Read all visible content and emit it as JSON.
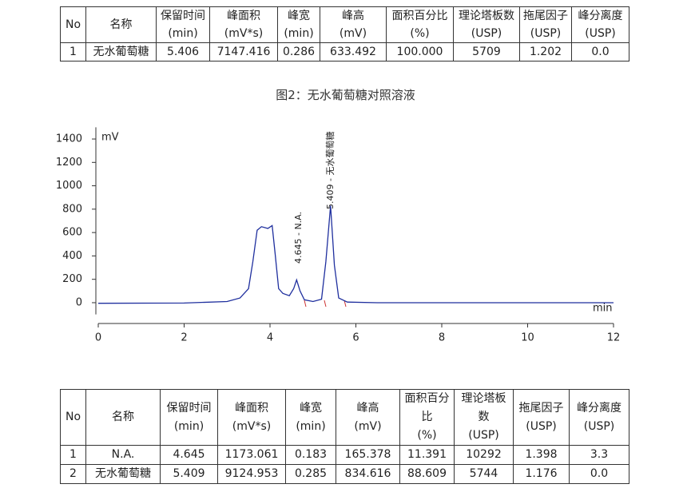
{
  "table1": {
    "headers": [
      [
        "No"
      ],
      [
        "名称"
      ],
      [
        "保留时间",
        "(min)"
      ],
      [
        "峰面积",
        "(mV*s)"
      ],
      [
        "峰宽",
        "(min)"
      ],
      [
        "峰高",
        "(mV)"
      ],
      [
        "面积百分比",
        "(%)"
      ],
      [
        "理论塔板数",
        "(USP)"
      ],
      [
        "拖尾因子",
        "(USP)"
      ],
      [
        "峰分离度",
        "(USP)"
      ]
    ],
    "rows": [
      [
        "1",
        "无水葡萄糖",
        "5.406",
        "7147.416",
        "0.286",
        "633.492",
        "100.000",
        "5709",
        "1.202",
        "0.0"
      ]
    ]
  },
  "caption": "图2：无水葡萄糖对照溶液",
  "chart_data": {
    "type": "line",
    "y_label": "mV",
    "x_label": "min",
    "x": [
      0,
      2,
      3,
      3.3,
      3.5,
      3.6,
      3.7,
      3.8,
      3.95,
      4.05,
      4.12,
      4.2,
      4.3,
      4.45,
      4.55,
      4.62,
      4.7,
      4.8,
      5.0,
      5.2,
      5.3,
      5.41,
      5.5,
      5.6,
      5.8,
      6.5,
      12
    ],
    "values": [
      -5,
      -3,
      10,
      40,
      120,
      350,
      620,
      650,
      635,
      660,
      420,
      120,
      80,
      60,
      120,
      195,
      100,
      25,
      10,
      30,
      350,
      830,
      320,
      40,
      5,
      0,
      0
    ],
    "color": "#1f2f9e",
    "xlim": [
      0,
      12
    ],
    "ylim": [
      -100,
      1500
    ],
    "xticks": [
      0,
      2,
      4,
      6,
      8,
      10,
      12
    ],
    "yticks": [
      0,
      200,
      400,
      600,
      800,
      1000,
      1200,
      1400
    ],
    "annotations": [
      "4.645 - N.A.",
      "5.409 - 无水葡萄糖"
    ]
  },
  "table2": {
    "headers": [
      [
        "No"
      ],
      [
        "名称"
      ],
      [
        "保留时间",
        "(min)"
      ],
      [
        "峰面积",
        "(mV*s)"
      ],
      [
        "峰宽",
        "(min)"
      ],
      [
        "峰高",
        "(mV)"
      ],
      [
        "面积百分比",
        "(%)"
      ],
      [
        "理论塔板数",
        "(USP)"
      ],
      [
        "拖尾因子",
        "(USP)"
      ],
      [
        "峰分离度",
        "(USP)"
      ]
    ],
    "rows": [
      [
        "1",
        "N.A.",
        "4.645",
        "1173.061",
        "0.183",
        "165.378",
        "11.391",
        "10292",
        "1.398",
        "3.3"
      ],
      [
        "2",
        "无水葡萄糖",
        "5.409",
        "9124.953",
        "0.285",
        "834.616",
        "88.609",
        "5744",
        "1.176",
        "0.0"
      ]
    ]
  }
}
